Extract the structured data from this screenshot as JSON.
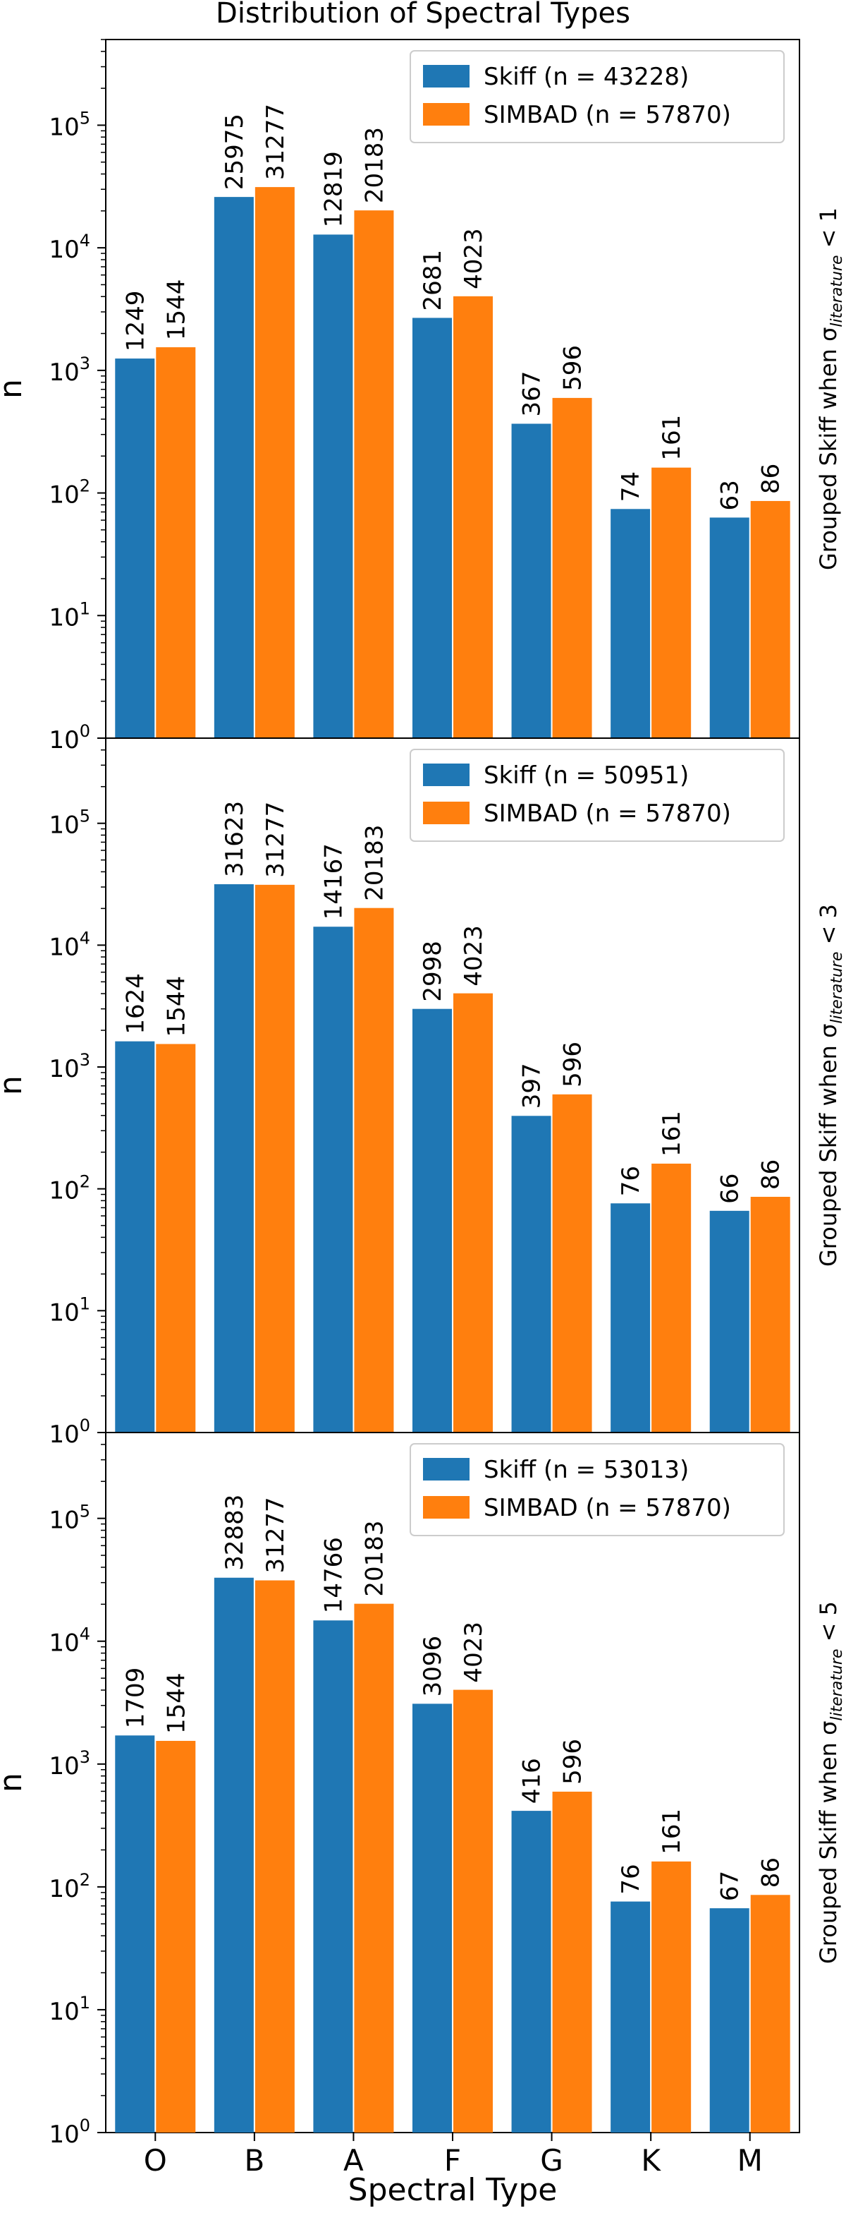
{
  "chart_data": {
    "type": "bar",
    "title": "Distribution of Spectral Types",
    "xlabel": "Spectral Type",
    "categories": [
      "O",
      "B",
      "A",
      "F",
      "G",
      "K",
      "M"
    ],
    "yscale": "log",
    "ylim": [
      1,
      500000
    ],
    "grid": false,
    "legend_position": "top-right",
    "colors": {
      "skiff": "#1f77b4",
      "simbad": "#ff7f0e"
    },
    "panels": [
      {
        "ylabel": "n",
        "side_label": {
          "prefix": "Grouped Skiff when σ",
          "subscript": "literature",
          "suffix": " < 1"
        },
        "series": [
          {
            "name": "Skiff (n = 43228)",
            "values": [
              1249,
              25975,
              12819,
              2681,
              367,
              74,
              63
            ]
          },
          {
            "name": "SIMBAD (n = 57870)",
            "values": [
              1544,
              31277,
              20183,
              4023,
              596,
              161,
              86
            ]
          }
        ]
      },
      {
        "ylabel": "n",
        "side_label": {
          "prefix": "Grouped Skiff when σ",
          "subscript": "literature",
          "suffix": " < 3"
        },
        "series": [
          {
            "name": "Skiff (n = 50951)",
            "values": [
              1624,
              31623,
              14167,
              2998,
              397,
              76,
              66
            ]
          },
          {
            "name": "SIMBAD (n = 57870)",
            "values": [
              1544,
              31277,
              20183,
              4023,
              596,
              161,
              86
            ]
          }
        ]
      },
      {
        "ylabel": "n",
        "side_label": {
          "prefix": "Grouped Skiff when σ",
          "subscript": "literature",
          "suffix": " < 5"
        },
        "series": [
          {
            "name": "Skiff (n = 53013)",
            "values": [
              1709,
              32883,
              14766,
              3096,
              416,
              76,
              67
            ]
          },
          {
            "name": "SIMBAD (n = 57870)",
            "values": [
              1544,
              31277,
              20183,
              4023,
              596,
              161,
              86
            ]
          }
        ]
      }
    ]
  }
}
